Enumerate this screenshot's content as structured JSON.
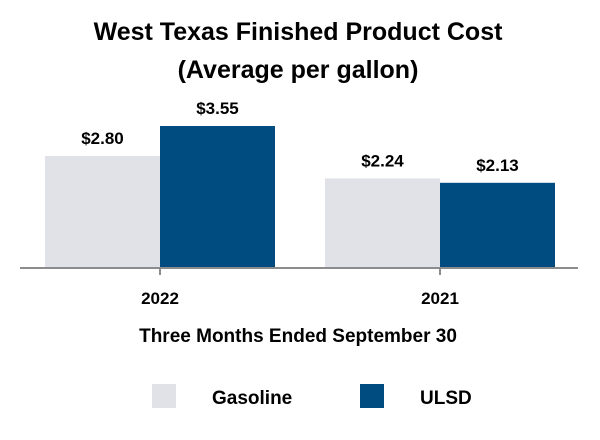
{
  "chart_data": {
    "type": "bar",
    "title": "West Texas Finished Product Cost",
    "subtitle": "(Average per gallon)",
    "xlabel": "Three Months Ended September 30",
    "ylabel": "",
    "categories": [
      "2022",
      "2021"
    ],
    "ylim": [
      0,
      4.2
    ],
    "grid": false,
    "legend_position": "bottom",
    "series": [
      {
        "name": "Gasoline",
        "values": [
          2.8,
          2.24
        ],
        "labels": [
          "$2.80",
          "$2.24"
        ],
        "color": "#e1e2e7"
      },
      {
        "name": "ULSD",
        "values": [
          3.55,
          2.13
        ],
        "labels": [
          "$3.55",
          "$2.13"
        ],
        "color": "#004b7f"
      }
    ],
    "axis_color": "#8c8c8c"
  }
}
